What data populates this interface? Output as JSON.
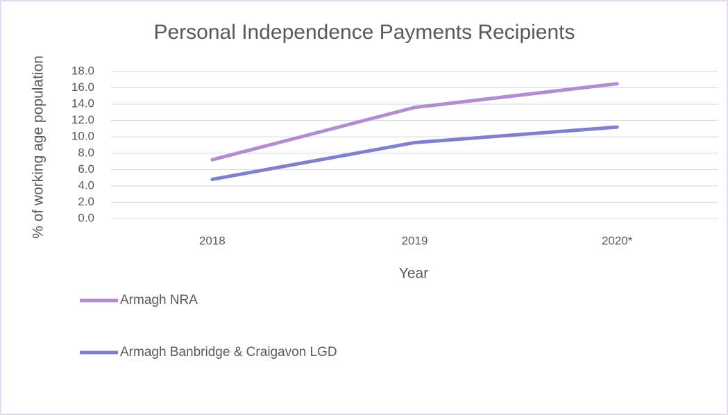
{
  "chart_data": {
    "type": "line",
    "title": "Personal Independence Payments Recipients",
    "x_label": "Year",
    "y_label": "% of working age population",
    "categories": [
      "2018",
      "2019",
      "2020*"
    ],
    "series": [
      {
        "name": "Armagh NRA",
        "color": "#b48cd0",
        "values": [
          7.2,
          13.6,
          16.5
        ]
      },
      {
        "name": "Armagh Banbridge & Craigavon LGD",
        "color": "#8080cc",
        "values": [
          4.8,
          9.3,
          11.2
        ]
      }
    ],
    "ylim": [
      0,
      18
    ],
    "yticks": [
      {
        "value": 0,
        "label": "0.0"
      },
      {
        "value": 2,
        "label": "2.0"
      },
      {
        "value": 4,
        "label": "4.0"
      },
      {
        "value": 6,
        "label": "6.0"
      },
      {
        "value": 8,
        "label": "8.0"
      },
      {
        "value": 10,
        "label": "10.0"
      },
      {
        "value": 12,
        "label": "12.0"
      },
      {
        "value": 14,
        "label": "14.0"
      },
      {
        "value": 16,
        "label": "16.0"
      },
      {
        "value": 18,
        "label": "18.0"
      }
    ],
    "grid": true,
    "legend": "bottom-left"
  }
}
